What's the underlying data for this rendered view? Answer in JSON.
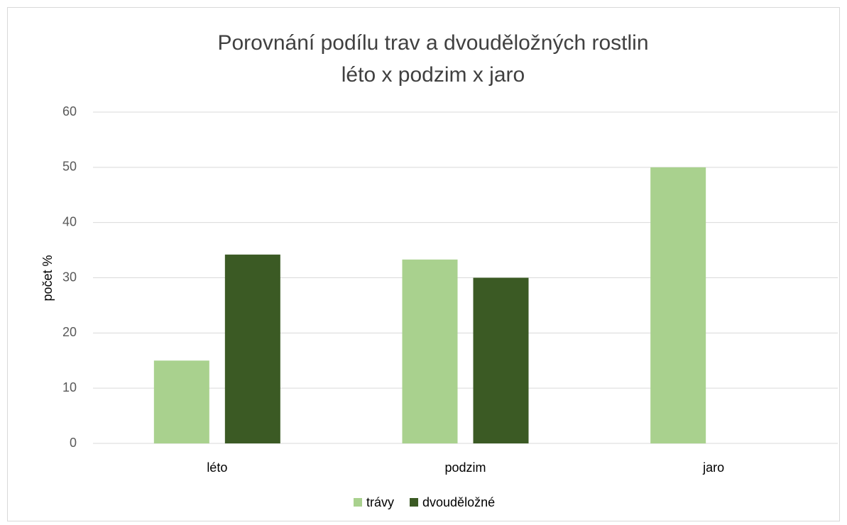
{
  "chart_data": {
    "type": "bar",
    "title": [
      "Porovnání podílu trav a dvouděložných rostlin",
      "léto x podzim x jaro"
    ],
    "y_label": "počet %",
    "categories": [
      "léto",
      "podzim",
      "jaro"
    ],
    "series": [
      {
        "name": "trávy",
        "color": "#a9d18e",
        "values": [
          15,
          33.3,
          50
        ]
      },
      {
        "name": "dvouděložné",
        "color": "#3b5a24",
        "values": [
          34.2,
          30,
          0
        ]
      }
    ],
    "ylim": [
      0,
      60
    ],
    "yticks": [
      0,
      10,
      20,
      30,
      40,
      50,
      60
    ],
    "grid": true,
    "legend": "bottom"
  }
}
